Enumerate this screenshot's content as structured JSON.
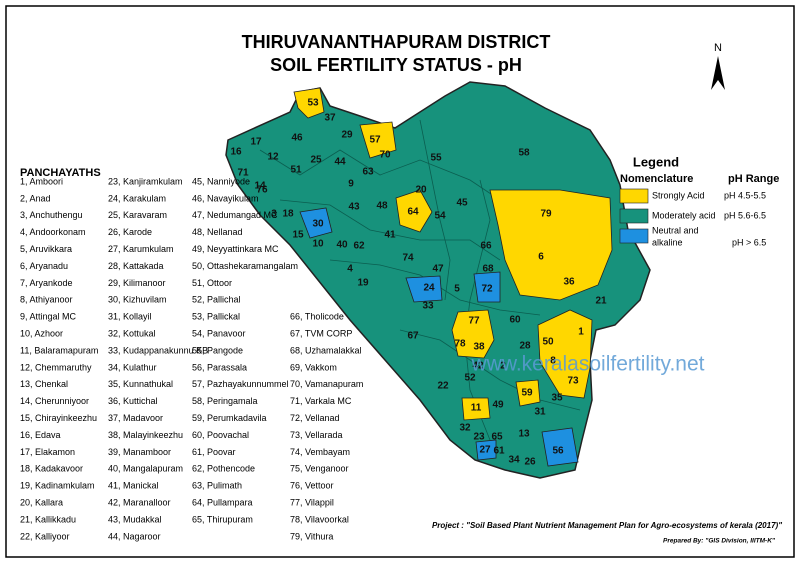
{
  "title": {
    "line1": "THIRUVANANTHAPURAM DISTRICT",
    "line2": "SOIL FERTILITY STATUS -  pH"
  },
  "north_arrow": "N",
  "panchayaths": {
    "heading": "PANCHAYATHS",
    "items": [
      "1, Amboori",
      "2, Anad",
      "3, Anchuthengu",
      "4, Andoorkonam",
      "5, Aruvikkara",
      "6, Aryanadu",
      "7, Aryankode",
      "8, Athiyanoor",
      "9, Attingal MC",
      "10, Azhoor",
      "11, Balaramapuram",
      "12, Chemmaruthy",
      "13, Chenkal",
      "14, Cherunniyoor",
      "15, Chirayinkeezhu",
      "16, Edava",
      "17, Elakamon",
      "18, Kadakavoor",
      "19, Kadinamkulam",
      "20, Kallara",
      "21, Kallikkadu",
      "22, Kalliyoor",
      "23, Kanjiramkulam",
      "24, Karakulam",
      "25, Karavaram",
      "26, Karode",
      "27, Karumkulam",
      "28, Kattakada",
      "29, Kilimanoor",
      "30, Kizhuvilam",
      "31, Kollayil",
      "32, Kottukal",
      "33, Kudappanakunnu KB",
      "34, Kulathur",
      "35, Kunnathukal",
      "36, Kuttichal",
      "37, Madavoor",
      "38, Malayinkeezhu",
      "39, Manamboor",
      "40, Mangalapuram",
      "41, Manickal",
      "42, Maranalloor",
      "43, Mudakkal",
      "44, Nagaroor",
      "45, Nanniyode",
      "46, Navayikulam",
      "47, Nedumangad MC",
      "48, Nellanad",
      "49, Neyyattinkara MC",
      "50, Ottashekaramangalam",
      "51, Ottoor",
      "52, Pallichal",
      "53, Pallickal",
      "54, Panavoor",
      "55, Pangode",
      "56, Parassala",
      "57, Pazhayakunnummel",
      "58, Peringamala",
      "59, Perumkadavila",
      "60, Poovachal",
      "61, Poovar",
      "62, Pothencode",
      "63, Pulimath",
      "64, Pullampara",
      "65, Thirupuram",
      "66, Tholicode",
      "67, TVM CORP",
      "68, Uzhamalakkal",
      "69, Vakkom",
      "70, Vamanapuram",
      "71, Varkala MC",
      "72, Vellanad",
      "73, Vellarada",
      "74, Vembayam",
      "75, Venganoor",
      "76, Vettoor",
      "77, Vilappil",
      "78, Vilavoorkal",
      "79, Vithura"
    ]
  },
  "map": {
    "labels": [
      "53",
      "37",
      "57",
      "46",
      "29",
      "17",
      "16",
      "12",
      "44",
      "55",
      "58",
      "71",
      "51",
      "25",
      "63",
      "70",
      "14",
      "76",
      "9",
      "20",
      "45",
      "3",
      "18",
      "30",
      "15",
      "10",
      "40",
      "62",
      "41",
      "43",
      "48",
      "64",
      "54",
      "66",
      "79",
      "6",
      "36",
      "21",
      "74",
      "47",
      "68",
      "4",
      "19",
      "24",
      "5",
      "72",
      "33",
      "67",
      "60",
      "77",
      "1",
      "50",
      "78",
      "38",
      "28",
      "8",
      "42",
      "2",
      "52",
      "22",
      "73",
      "59",
      "35",
      "11",
      "49",
      "31",
      "32",
      "23",
      "65",
      "13",
      "27",
      "61",
      "56",
      "34",
      "26"
    ]
  },
  "legend": {
    "title": "Legend",
    "nomenclature_header": "Nomenclature",
    "range_header": "pH Range",
    "classes": [
      {
        "name": "Strongly Acid",
        "range": "pH 4.5-5.5",
        "color": "#ffd700"
      },
      {
        "name": "Moderately acid",
        "range": "pH 5.6-6.5",
        "color": "#17927c"
      },
      {
        "name_lines": [
          "Neutral and",
          "alkaline"
        ],
        "range": "pH > 6.5",
        "color": "#1e90e0"
      }
    ]
  },
  "watermark": "www.keralasoilfertility.net",
  "project": "Project : \"Soil Based Plant Nutrient Management Plan for Agro-ecosystems of kerala (2017)\"",
  "prepared_by": "Prepared By: \"GIS Division, IIITM-K\""
}
